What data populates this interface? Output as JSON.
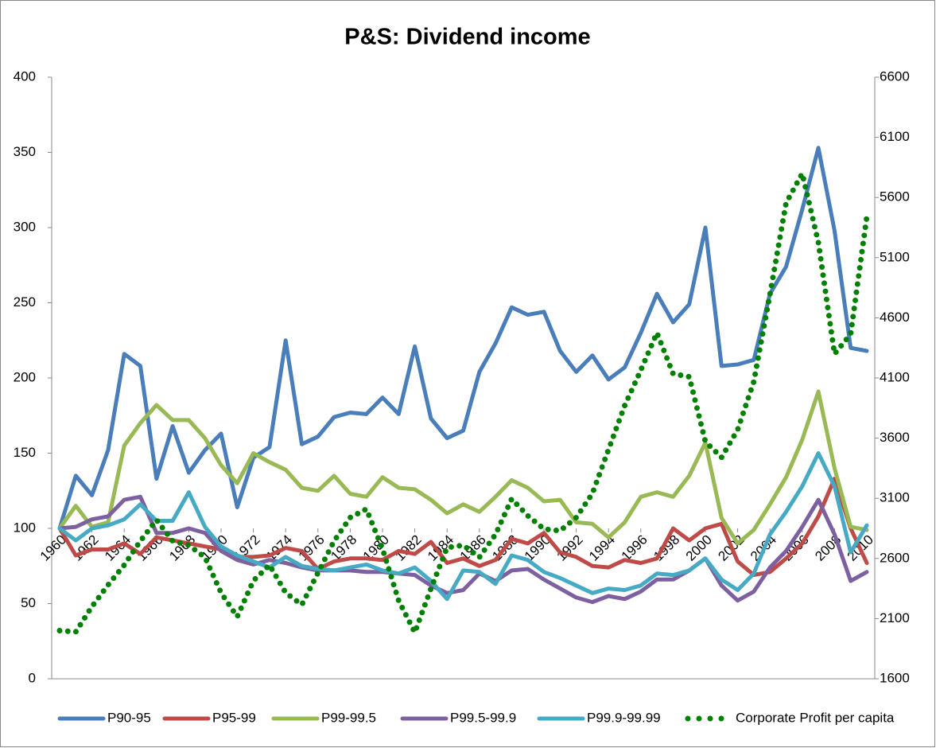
{
  "chart_data": {
    "type": "line",
    "title": "P&S: Dividend income",
    "x": [
      1960,
      1961,
      1962,
      1963,
      1964,
      1965,
      1966,
      1967,
      1968,
      1969,
      1970,
      1971,
      1972,
      1973,
      1974,
      1975,
      1976,
      1977,
      1978,
      1979,
      1980,
      1981,
      1982,
      1983,
      1984,
      1985,
      1986,
      1987,
      1988,
      1989,
      1990,
      1991,
      1992,
      1993,
      1994,
      1995,
      1996,
      1997,
      1998,
      1999,
      2000,
      2001,
      2002,
      2003,
      2004,
      2005,
      2006,
      2007,
      2008,
      2009,
      2010
    ],
    "xlim": [
      1960,
      2010
    ],
    "xticks": [
      1960,
      1962,
      1964,
      1966,
      1968,
      1970,
      1972,
      1974,
      1976,
      1978,
      1980,
      1982,
      1984,
      1986,
      1988,
      1990,
      1992,
      1994,
      1996,
      1998,
      2000,
      2002,
      2004,
      2006,
      2008,
      2010
    ],
    "ylim": [
      0,
      400
    ],
    "yticks": [
      0,
      50,
      100,
      150,
      200,
      250,
      300,
      350,
      400
    ],
    "y2lim": [
      1600,
      6600
    ],
    "y2ticks": [
      1600,
      2100,
      2600,
      3100,
      3600,
      4100,
      4600,
      5100,
      5600,
      6100,
      6600
    ],
    "series": [
      {
        "name": "P90-95",
        "color": "#4a7ebb",
        "values": [
          100,
          135,
          122,
          152,
          216,
          208,
          133,
          168,
          137,
          152,
          163,
          114,
          147,
          154,
          225,
          156,
          161,
          174,
          177,
          176,
          187,
          176,
          221,
          173,
          160,
          165,
          204,
          223,
          247,
          242,
          244,
          218,
          204,
          215,
          199,
          207,
          230,
          256,
          237,
          249,
          300,
          208,
          209,
          212,
          256,
          274,
          312,
          353,
          298,
          220,
          218
        ]
      },
      {
        "name": "P95-99",
        "color": "#be4b48",
        "values": [
          100,
          82,
          86,
          86,
          90,
          83,
          94,
          92,
          90,
          88,
          86,
          81,
          81,
          82,
          87,
          85,
          73,
          78,
          80,
          80,
          79,
          85,
          83,
          91,
          77,
          80,
          75,
          79,
          93,
          90,
          97,
          84,
          81,
          75,
          74,
          79,
          77,
          80,
          100,
          92,
          100,
          103,
          78,
          69,
          71,
          80,
          90,
          108,
          133,
          100,
          77
        ]
      },
      {
        "name": "P99-99.5",
        "color": "#98b954",
        "values": [
          100,
          115,
          101,
          104,
          155,
          170,
          182,
          172,
          172,
          160,
          142,
          130,
          150,
          144,
          139,
          127,
          125,
          135,
          123,
          121,
          134,
          127,
          126,
          119,
          110,
          116,
          111,
          121,
          132,
          127,
          118,
          119,
          104,
          103,
          94,
          104,
          121,
          124,
          121,
          135,
          157,
          107,
          90,
          99,
          116,
          134,
          159,
          191,
          140,
          101,
          99
        ]
      },
      {
        "name": "P99.5-99.9",
        "color": "#7d60a0",
        "values": [
          100,
          101,
          106,
          108,
          119,
          121,
          97,
          97,
          100,
          97,
          85,
          79,
          76,
          79,
          77,
          74,
          72,
          72,
          72,
          71,
          71,
          70,
          69,
          62,
          57,
          59,
          70,
          65,
          72,
          73,
          66,
          60,
          54,
          51,
          55,
          53,
          58,
          66,
          66,
          72,
          80,
          62,
          52,
          58,
          74,
          85,
          101,
          119,
          96,
          65,
          71
        ]
      },
      {
        "name": "P99.9-99.99",
        "color": "#46aac5",
        "values": [
          100,
          92,
          100,
          102,
          106,
          116,
          105,
          105,
          124,
          101,
          88,
          82,
          78,
          74,
          81,
          75,
          73,
          72,
          74,
          76,
          72,
          70,
          74,
          65,
          53,
          72,
          71,
          63,
          82,
          79,
          71,
          67,
          62,
          57,
          60,
          59,
          62,
          70,
          69,
          72,
          80,
          66,
          59,
          70,
          96,
          111,
          128,
          150,
          128,
          84,
          102
        ]
      },
      {
        "name": "Corporate Profit per capita",
        "color": "#008000",
        "axis": "y2",
        "style": "dotted",
        "values": [
          2000,
          1990,
          2200,
          2380,
          2545,
          2745,
          2920,
          2745,
          2710,
          2610,
          2315,
          2115,
          2415,
          2545,
          2315,
          2215,
          2480,
          2745,
          2940,
          3010,
          2680,
          2250,
          1985,
          2350,
          2690,
          2710,
          2610,
          2800,
          3095,
          2955,
          2845,
          2830,
          2940,
          3140,
          3505,
          3870,
          4165,
          4475,
          4135,
          4110,
          3570,
          3440,
          3670,
          4070,
          4795,
          5555,
          5800,
          5225,
          4300,
          4465,
          5440
        ]
      }
    ],
    "xaxis_crosses": 100,
    "grid": false,
    "legend": "bottom"
  }
}
